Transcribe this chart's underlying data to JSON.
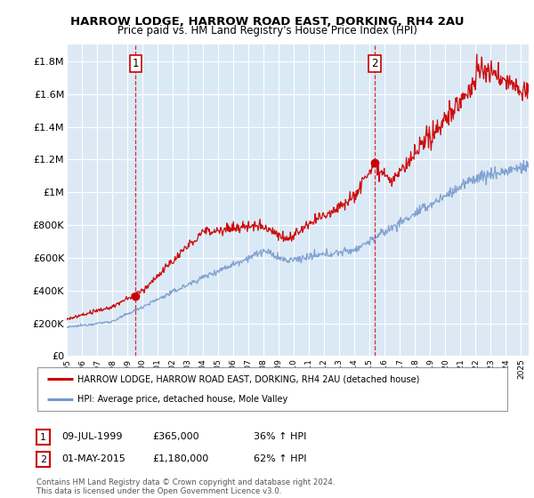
{
  "title": "HARROW LODGE, HARROW ROAD EAST, DORKING, RH4 2AU",
  "subtitle": "Price paid vs. HM Land Registry's House Price Index (HPI)",
  "background_color": "#ffffff",
  "grid_color": "#cccccc",
  "plot_bg": "#dce9f5",
  "highlight_color": "#c5d9f0",
  "sale1_date": 1999.54,
  "sale1_price": 365000,
  "sale2_date": 2015.33,
  "sale2_price": 1180000,
  "yticks": [
    0,
    200000,
    400000,
    600000,
    800000,
    1000000,
    1200000,
    1400000,
    1600000,
    1800000
  ],
  "ylabels": [
    "£0",
    "£200K",
    "£400K",
    "£600K",
    "£800K",
    "£1M",
    "£1.2M",
    "£1.4M",
    "£1.6M",
    "£1.8M"
  ],
  "ylim": [
    0,
    1900000
  ],
  "xmin": 1995.0,
  "xmax": 2025.5,
  "red_color": "#cc0000",
  "blue_color": "#7799cc",
  "legend1": "HARROW LODGE, HARROW ROAD EAST, DORKING, RH4 2AU (detached house)",
  "legend2": "HPI: Average price, detached house, Mole Valley",
  "annotation1_date": "09-JUL-1999",
  "annotation1_price": "£365,000",
  "annotation1_hpi": "36% ↑ HPI",
  "annotation2_date": "01-MAY-2015",
  "annotation2_price": "£1,180,000",
  "annotation2_hpi": "62% ↑ HPI",
  "footer": "Contains HM Land Registry data © Crown copyright and database right 2024.\nThis data is licensed under the Open Government Licence v3.0."
}
